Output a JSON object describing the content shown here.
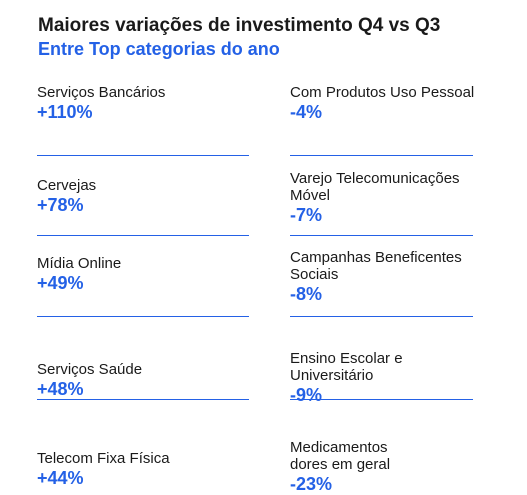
{
  "header": {
    "title": "Maiores variações de investimento Q4 vs Q3",
    "subtitle": "Entre Top categorias do ano"
  },
  "colors": {
    "accent": "#2461e6",
    "text": "#1a1a1a"
  },
  "rows": [
    {
      "left": {
        "category": "Serviços Bancários",
        "value": "+110%"
      },
      "right": {
        "category": "Com Produtos Uso Pessoal",
        "value": "-4%"
      }
    },
    {
      "left": {
        "category": "Cervejas",
        "value": "+78%"
      },
      "right": {
        "category": "Varejo Telecomunicações\nMóvel",
        "value": "-7%"
      }
    },
    {
      "left": {
        "category": "Mídia Online",
        "value": "+49%"
      },
      "right": {
        "category": "Campanhas Beneficentes\nSociais",
        "value": "-8%"
      }
    },
    {
      "left": {
        "category": "Serviços Saúde",
        "value": "+48%"
      },
      "right": {
        "category": "Ensino Escolar e\nUniversitário",
        "value": "-9%"
      }
    },
    {
      "left": {
        "category": "Telecom Fixa Física",
        "value": "+44%"
      },
      "right": {
        "category": "Medicamentos\ndores em geral",
        "value": "-23%"
      }
    }
  ]
}
